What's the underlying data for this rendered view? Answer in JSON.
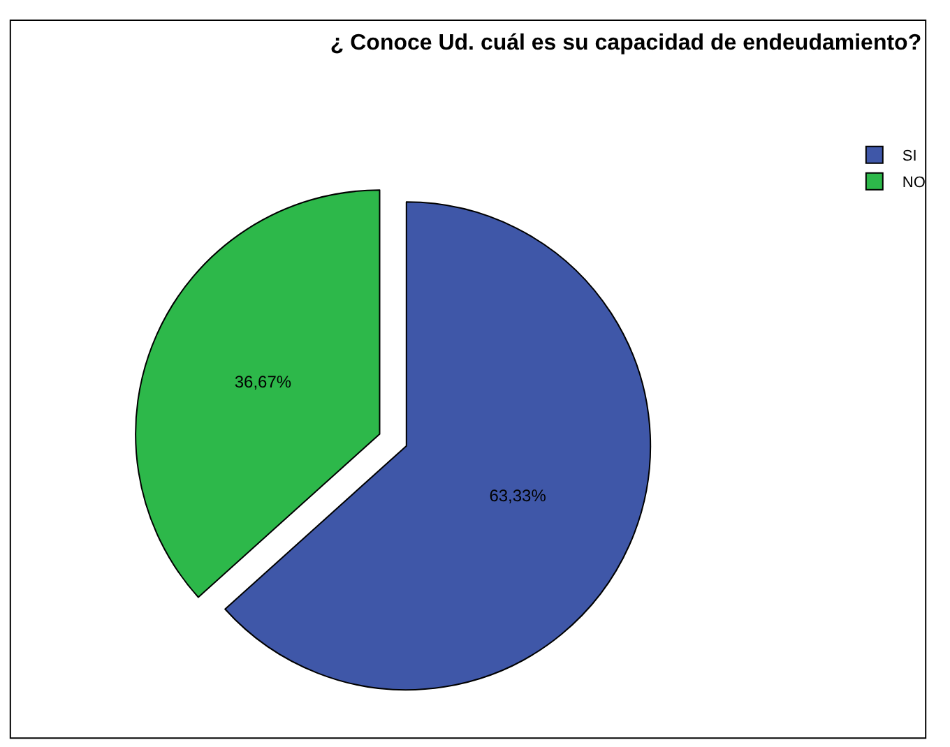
{
  "chart_data": {
    "type": "pie",
    "title": "¿ Conoce Ud. cuál es su capacidad de endeudamiento?",
    "categories": [
      "SI",
      "NO"
    ],
    "values": [
      63.33,
      36.67
    ],
    "value_labels": [
      "63,33%",
      "36,67%"
    ],
    "colors": [
      "#3f57a8",
      "#2db84a"
    ],
    "legend": "top right"
  }
}
